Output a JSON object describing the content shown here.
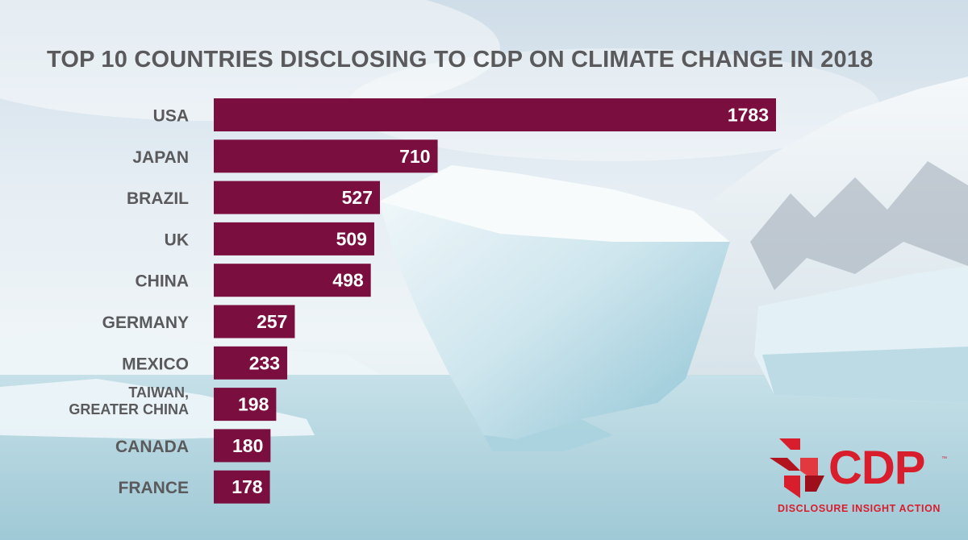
{
  "header": {
    "title": "TOP 10 COUNTRIES DISCLOSING TO CDP ON CLIMATE CHANGE IN 2018"
  },
  "colors": {
    "bar": "#7a0e3e",
    "label": "#5a5a5c",
    "value": "#ffffff",
    "brand": "#d81e2c"
  },
  "logo": {
    "icon": "cdp-chevron-mark-icon",
    "word": "CDP",
    "trademark": "™",
    "tagline": "DISCLOSURE  INSIGHT  ACTION"
  },
  "chart_data": {
    "type": "bar",
    "orientation": "horizontal",
    "title": "TOP 10 COUNTRIES DISCLOSING TO CDP ON CLIMATE CHANGE IN 2018",
    "categories": [
      [
        "USA"
      ],
      [
        "JAPAN"
      ],
      [
        "BRAZIL"
      ],
      [
        "UK"
      ],
      [
        "CHINA"
      ],
      [
        "GERMANY"
      ],
      [
        "MEXICO"
      ],
      [
        "TAIWAN,",
        "GREATER CHINA"
      ],
      [
        "CANADA"
      ],
      [
        "FRANCE"
      ]
    ],
    "values": [
      1783,
      710,
      527,
      509,
      498,
      257,
      233,
      198,
      180,
      178
    ],
    "data_labels": true,
    "grid": false,
    "legend": "none"
  }
}
